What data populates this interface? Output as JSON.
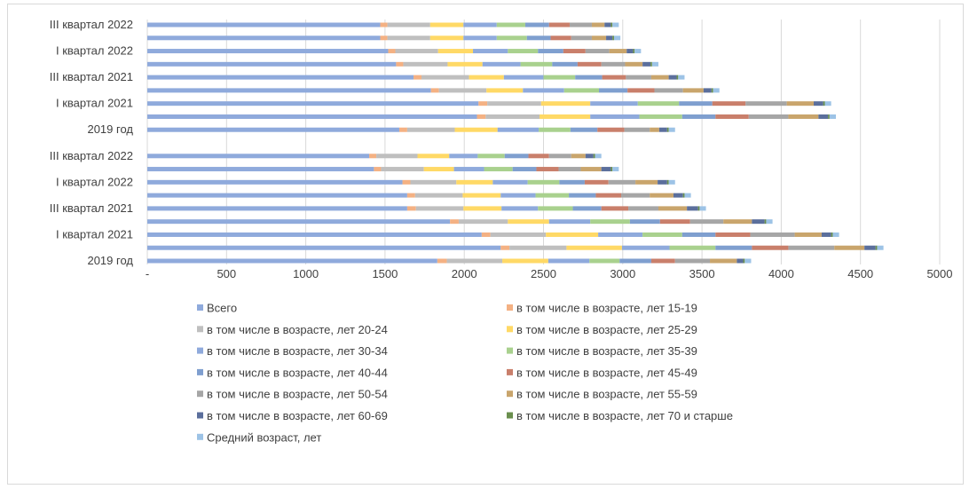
{
  "chart_data": {
    "type": "bar",
    "orientation": "horizontal",
    "stacked": true,
    "xlim": [
      0,
      5000
    ],
    "x_ticks": [
      "-",
      "500",
      "1000",
      "1500",
      "2000",
      "2500",
      "3000",
      "3500",
      "4000",
      "4500",
      "5000"
    ],
    "grid": true,
    "legend_position": "bottom",
    "categories": [
      "2019 год",
      "",
      "I квартал 2021",
      "",
      "III квартал 2021",
      "",
      "I квартал 2022",
      "",
      "III квартал 2022",
      "",
      "2019 год",
      "",
      "I квартал 2021",
      "",
      "III квартал 2021",
      "",
      "I квартал 2022",
      "",
      "III квартал 2022"
    ],
    "series": [
      {
        "name": "Всего",
        "color": "#8faadc",
        "values": [
          1830,
          2230,
          2110,
          1910,
          1640,
          1640,
          1610,
          1430,
          1400,
          null,
          1590,
          2080,
          2090,
          1790,
          1680,
          1570,
          1520,
          1470,
          1470
        ]
      },
      {
        "name": "в том числе в возрасте, лет 15-19",
        "color": "#f4b183",
        "values": [
          60,
          55,
          55,
          55,
          55,
          50,
          50,
          45,
          45,
          null,
          50,
          55,
          55,
          50,
          50,
          45,
          45,
          45,
          45
        ]
      },
      {
        "name": "в том числе в возрасте, лет 20-24",
        "color": "#bfbfbf",
        "values": [
          350,
          360,
          350,
          310,
          300,
          300,
          290,
          270,
          260,
          null,
          300,
          340,
          340,
          300,
          300,
          280,
          270,
          270,
          270
        ]
      },
      {
        "name": "в том числе в возрасте, лет 25-29",
        "color": "#ffd966",
        "values": [
          290,
          350,
          330,
          260,
          240,
          240,
          230,
          190,
          200,
          null,
          270,
          320,
          310,
          230,
          220,
          220,
          220,
          210,
          210
        ]
      },
      {
        "name": "в том числе в возрасте, лет 30-34",
        "color": "#8faadc",
        "values": [
          260,
          300,
          280,
          260,
          230,
          220,
          220,
          190,
          180,
          null,
          260,
          310,
          300,
          260,
          250,
          240,
          220,
          210,
          210
        ]
      },
      {
        "name": "в том числе в возрасте, лет 35-39",
        "color": "#a9d18e",
        "values": [
          190,
          290,
          250,
          250,
          220,
          210,
          200,
          180,
          170,
          null,
          200,
          270,
          260,
          220,
          200,
          200,
          190,
          190,
          180
        ]
      },
      {
        "name": "в том числе в возрасте, лет 40-44",
        "color": "#7f9fcf",
        "values": [
          200,
          230,
          210,
          190,
          180,
          170,
          160,
          150,
          150,
          null,
          170,
          210,
          210,
          180,
          170,
          160,
          160,
          150,
          150
        ]
      },
      {
        "name": "в том числе в возрасте, лет 45-49",
        "color": "#c97f6b",
        "values": [
          150,
          230,
          220,
          190,
          170,
          160,
          150,
          140,
          130,
          null,
          170,
          210,
          210,
          170,
          150,
          150,
          140,
          130,
          130
        ]
      },
      {
        "name": "в том числе в возрасте, лет 50-54",
        "color": "#a6a6a6",
        "values": [
          220,
          290,
          280,
          210,
          190,
          180,
          170,
          140,
          140,
          null,
          160,
          250,
          260,
          180,
          160,
          150,
          150,
          130,
          140
        ]
      },
      {
        "name": "в том числе в возрасте, лет 55-59",
        "color": "#c9a56c",
        "values": [
          170,
          190,
          170,
          180,
          180,
          150,
          140,
          130,
          90,
          null,
          60,
          190,
          170,
          130,
          110,
          110,
          110,
          90,
          80
        ]
      },
      {
        "name": "в том числе в возрасте, лет 60-69",
        "color": "#5b6f9c",
        "values": [
          40,
          70,
          60,
          80,
          70,
          60,
          60,
          60,
          50,
          null,
          50,
          60,
          60,
          50,
          50,
          50,
          40,
          40,
          40
        ]
      },
      {
        "name": "в том числе в возрасте, лет 70 и старше",
        "color": "#6a8f4e",
        "values": [
          10,
          10,
          10,
          10,
          10,
          10,
          10,
          10,
          10,
          null,
          10,
          10,
          10,
          10,
          10,
          10,
          10,
          10,
          10
        ]
      },
      {
        "name": "Средний возраст, лет",
        "color": "#9dc3e6",
        "values": [
          40,
          40,
          40,
          40,
          40,
          40,
          40,
          40,
          40,
          null,
          40,
          40,
          40,
          40,
          40,
          40,
          40,
          40,
          40
        ]
      }
    ]
  }
}
